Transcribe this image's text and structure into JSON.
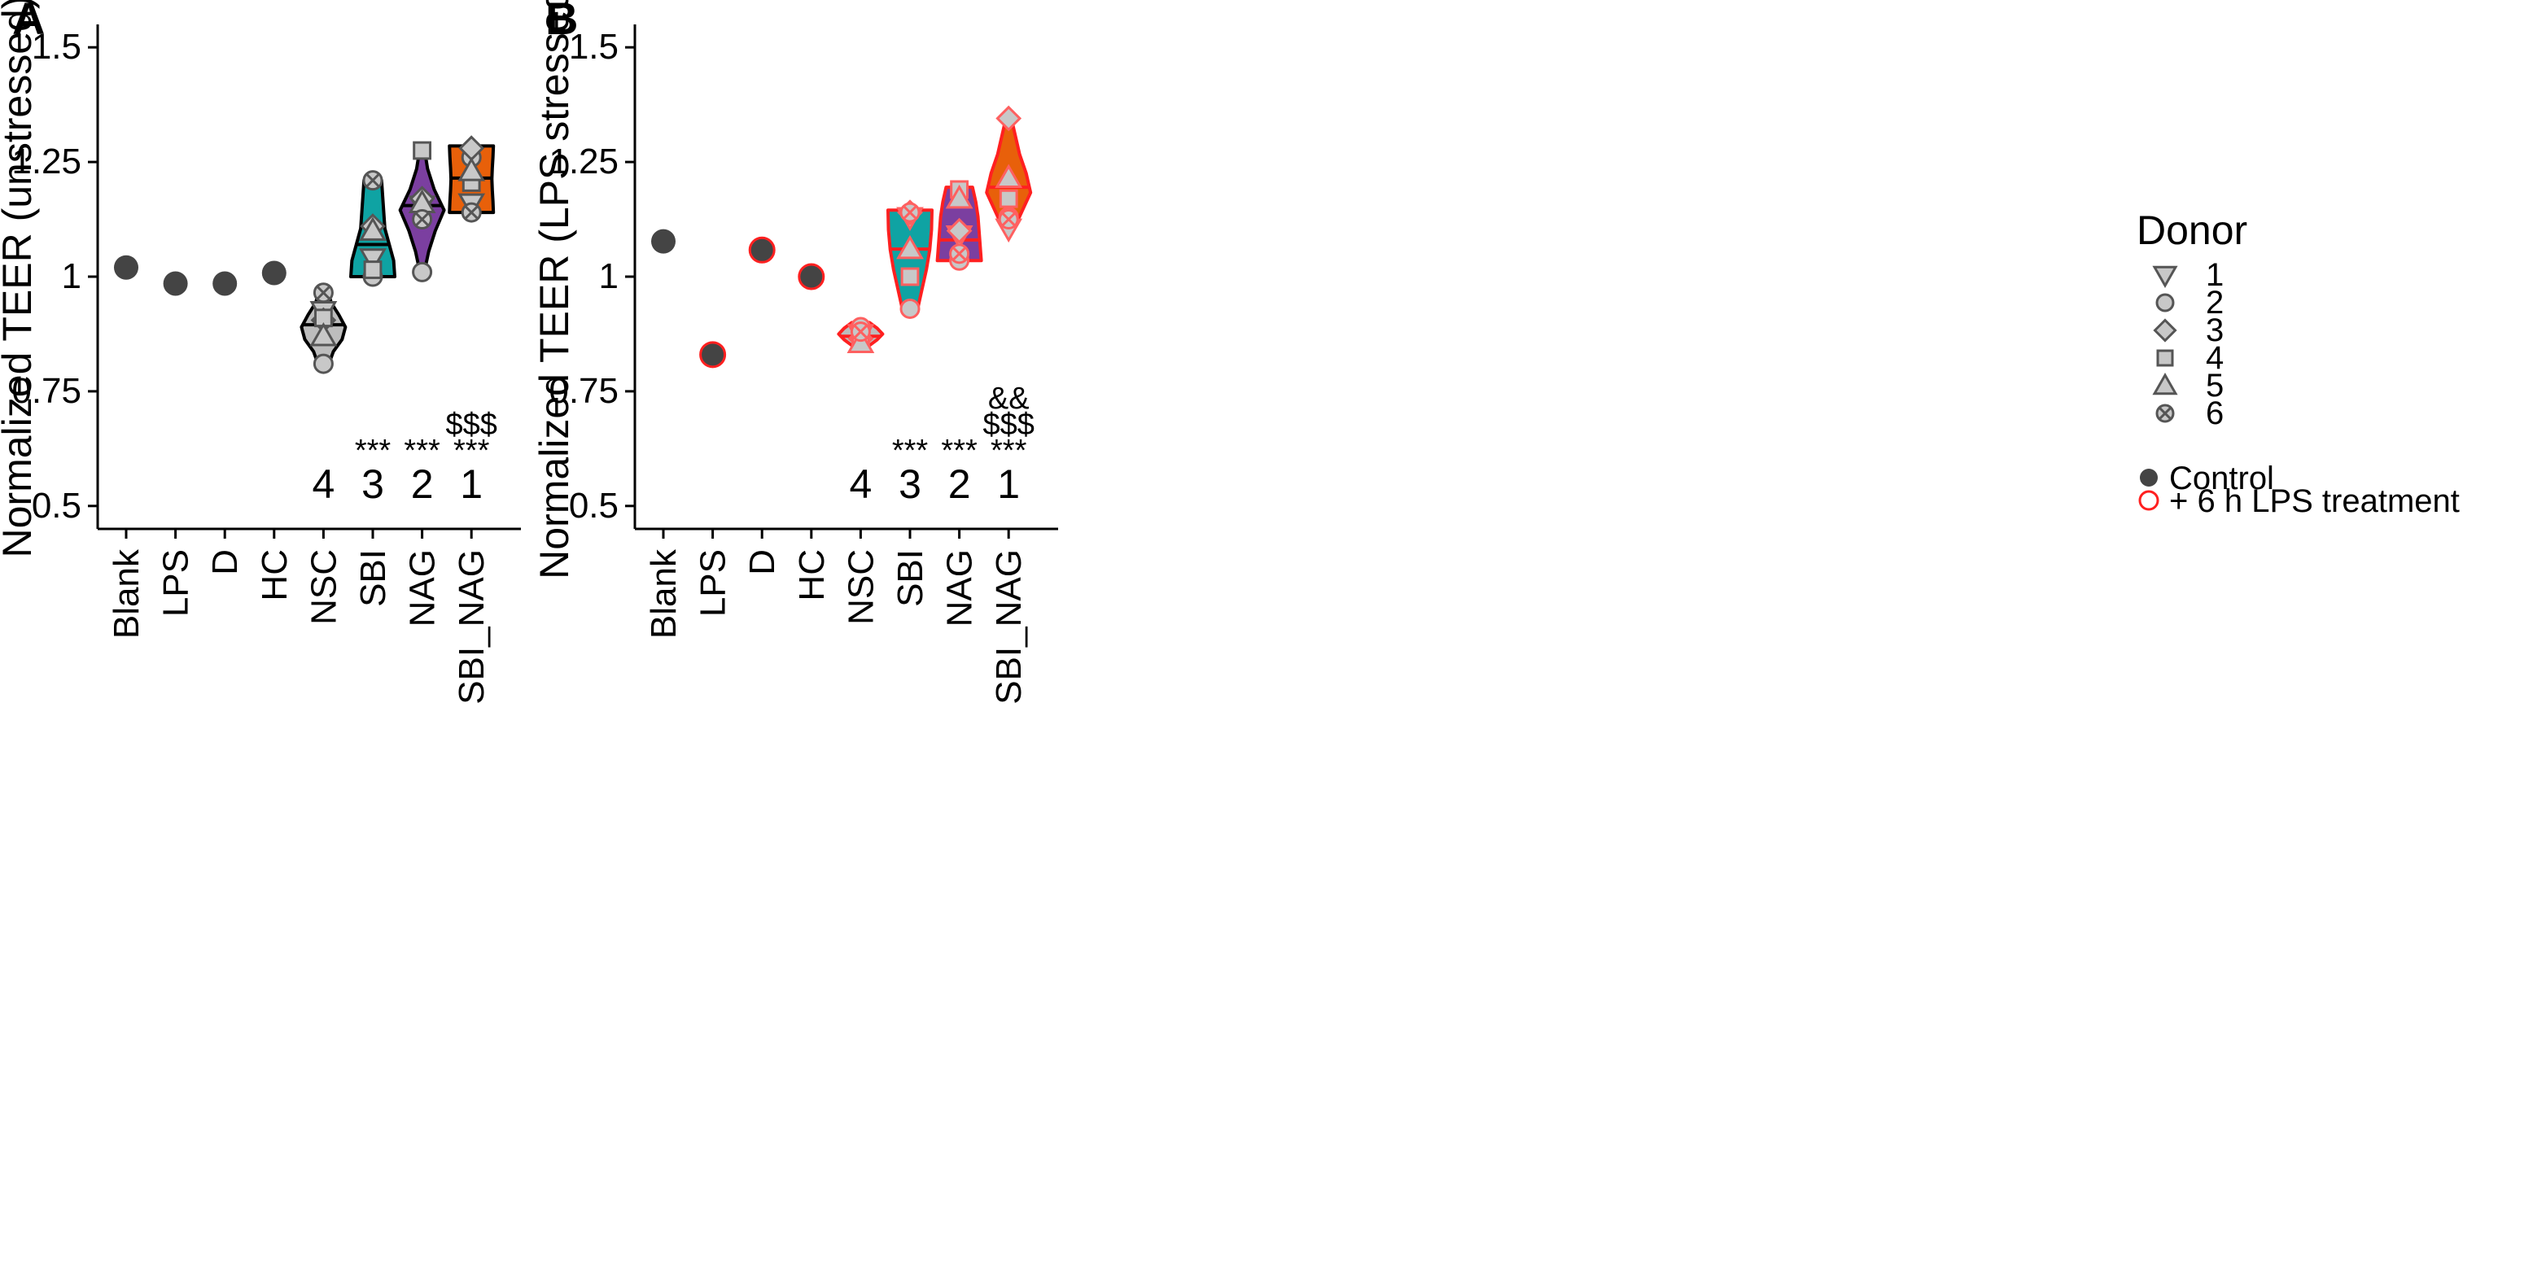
{
  "chart_data": [
    {
      "panel_label": "A",
      "type": "violin",
      "ylabel": "Normalized TEER (unstressed)",
      "ylim": [
        0.45,
        1.55
      ],
      "yticks": [
        0.5,
        0.75,
        1,
        1.25,
        1.5
      ],
      "ytick_labels": [
        "0.5",
        "0.75",
        "1",
        "1.25",
        "1.5"
      ],
      "categories": [
        "Blank",
        "LPS",
        "D",
        "HC",
        "NSC",
        "SBI",
        "NAG",
        "SBI_NAG"
      ],
      "fill_colors": [
        "#444444",
        "#444444",
        "#444444",
        "#444444",
        "#BDBDBD",
        "#0FA3A3",
        "#7B3FA0",
        "#E8600A"
      ],
      "outline_color": "#000000",
      "single_values": [
        1.02,
        0.985,
        0.985,
        1.008,
        null,
        null,
        null,
        null
      ],
      "violins": [
        null,
        null,
        null,
        null,
        {
          "min": 0.81,
          "max": 0.97,
          "median": 0.895,
          "widths": [
            0.25,
            0.45,
            0.85,
            1.0,
            0.7,
            0.35,
            0.2
          ]
        },
        {
          "min": 1.0,
          "max": 1.21,
          "median": 1.07,
          "widths": [
            1.0,
            0.95,
            0.75,
            0.55,
            0.5,
            0.45,
            0.4
          ]
        },
        {
          "min": 1.01,
          "max": 1.28,
          "median": 1.155,
          "widths": [
            0.1,
            0.3,
            0.6,
            1.0,
            0.55,
            0.25,
            0.1
          ]
        },
        {
          "min": 1.14,
          "max": 1.285,
          "median": 1.215,
          "widths": [
            1.0,
            0.98,
            0.95,
            0.93,
            0.95,
            0.98,
            1.0
          ]
        }
      ],
      "donor_points": [
        null,
        null,
        null,
        null,
        [
          {
            "donor": "1",
            "value": 0.925
          },
          {
            "donor": "2",
            "value": 0.81
          },
          {
            "donor": "3",
            "value": 0.905
          },
          {
            "donor": "4",
            "value": 0.91
          },
          {
            "donor": "5",
            "value": 0.87
          },
          {
            "donor": "6",
            "value": 0.965
          }
        ],
        [
          {
            "donor": "1",
            "value": 1.04
          },
          {
            "donor": "2",
            "value": 1.0
          },
          {
            "donor": "3",
            "value": 1.11
          },
          {
            "donor": "4",
            "value": 1.015
          },
          {
            "donor": "5",
            "value": 1.1
          },
          {
            "donor": "6",
            "value": 1.21
          }
        ],
        [
          {
            "donor": "1",
            "value": 1.155
          },
          {
            "donor": "2",
            "value": 1.01
          },
          {
            "donor": "3",
            "value": 1.17
          },
          {
            "donor": "4",
            "value": 1.275
          },
          {
            "donor": "5",
            "value": 1.16
          },
          {
            "donor": "6",
            "value": 1.125
          }
        ],
        [
          {
            "donor": "1",
            "value": 1.16
          },
          {
            "donor": "2",
            "value": 1.26
          },
          {
            "donor": "3",
            "value": 1.28
          },
          {
            "donor": "4",
            "value": 1.205
          },
          {
            "donor": "5",
            "value": 1.23
          },
          {
            "donor": "6",
            "value": 1.14
          }
        ]
      ],
      "annotations": [
        {
          "category": "NSC",
          "rank": "4",
          "sig": []
        },
        {
          "category": "SBI",
          "rank": "3",
          "sig": [
            "***"
          ]
        },
        {
          "category": "NAG",
          "rank": "2",
          "sig": [
            "***"
          ]
        },
        {
          "category": "SBI_NAG",
          "rank": "1",
          "sig": [
            "***",
            "$$$"
          ]
        }
      ]
    },
    {
      "panel_label": "B",
      "type": "violin",
      "ylabel": "Normalized TEER (LPS stressed)",
      "ylim": [
        0.45,
        1.55
      ],
      "yticks": [
        0.5,
        0.75,
        1,
        1.25,
        1.5
      ],
      "ytick_labels": [
        "0.5",
        "0.75",
        "1",
        "1.25",
        "1.5"
      ],
      "categories": [
        "Blank",
        "LPS",
        "D",
        "HC",
        "NSC",
        "SBI",
        "NAG",
        "SBI_NAG"
      ],
      "fill_colors": [
        "#444444",
        "#444444",
        "#444444",
        "#444444",
        "#BDBDBD",
        "#0FA3A3",
        "#7B3FA0",
        "#E8600A"
      ],
      "outline_color": "#FF2020",
      "single_values": [
        1.077,
        0.83,
        1.058,
        1.0,
        null,
        null,
        null,
        null
      ],
      "single_outlined": [
        false,
        true,
        true,
        true,
        false,
        false,
        false,
        false
      ],
      "violins": [
        null,
        null,
        null,
        null,
        {
          "min": 0.85,
          "max": 0.9,
          "median": 0.87,
          "widths": [
            0.4,
            0.75,
            1.0,
            0.75,
            0.4
          ]
        },
        {
          "min": 0.93,
          "max": 1.145,
          "median": 1.06,
          "widths": [
            0.35,
            0.55,
            0.75,
            0.9,
            0.98,
            1.0
          ]
        },
        {
          "min": 1.035,
          "max": 1.195,
          "median": 1.08,
          "widths": [
            1.0,
            0.95,
            0.9,
            0.85,
            0.75,
            0.6
          ]
        },
        {
          "min": 1.1,
          "max": 1.35,
          "median": 1.195,
          "widths": [
            0.2,
            0.6,
            1.0,
            0.8,
            0.5,
            0.3,
            0.1
          ]
        }
      ],
      "donor_points": [
        null,
        null,
        null,
        null,
        [
          {
            "donor": "1",
            "value": 0.875
          },
          {
            "donor": "2",
            "value": 0.89
          },
          {
            "donor": "3",
            "value": 0.865
          },
          {
            "donor": "4",
            "value": 0.87
          },
          {
            "donor": "5",
            "value": 0.855
          },
          {
            "donor": "6",
            "value": 0.88
          }
        ],
        [
          {
            "donor": "1",
            "value": 1.13
          },
          {
            "donor": "2",
            "value": 0.93
          },
          {
            "donor": "3",
            "value": 1.14
          },
          {
            "donor": "4",
            "value": 1.0
          },
          {
            "donor": "5",
            "value": 1.06
          },
          {
            "donor": "6",
            "value": 1.14
          }
        ],
        [
          {
            "donor": "1",
            "value": 1.09
          },
          {
            "donor": "2",
            "value": 1.035
          },
          {
            "donor": "3",
            "value": 1.1
          },
          {
            "donor": "4",
            "value": 1.19
          },
          {
            "donor": "5",
            "value": 1.17
          },
          {
            "donor": "6",
            "value": 1.05
          }
        ],
        [
          {
            "donor": "1",
            "value": 1.105
          },
          {
            "donor": "2",
            "value": 1.13
          },
          {
            "donor": "3",
            "value": 1.345
          },
          {
            "donor": "4",
            "value": 1.17
          },
          {
            "donor": "5",
            "value": 1.215
          },
          {
            "donor": "6",
            "value": 1.125
          }
        ]
      ],
      "annotations": [
        {
          "category": "NSC",
          "rank": "4",
          "sig": []
        },
        {
          "category": "SBI",
          "rank": "3",
          "sig": [
            "***"
          ]
        },
        {
          "category": "NAG",
          "rank": "2",
          "sig": [
            "***"
          ]
        },
        {
          "category": "SBI_NAG",
          "rank": "1",
          "sig": [
            "***",
            "$$$",
            "&&"
          ]
        }
      ]
    }
  ],
  "legend": {
    "title": "Donor",
    "donors": [
      {
        "label": "1",
        "shape": "triangle-down"
      },
      {
        "label": "2",
        "shape": "circle"
      },
      {
        "label": "3",
        "shape": "diamond"
      },
      {
        "label": "4",
        "shape": "square"
      },
      {
        "label": "5",
        "shape": "triangle-up"
      },
      {
        "label": "6",
        "shape": "circle-x"
      }
    ],
    "treatments": [
      {
        "label": "Control",
        "style": "filled-dark-circle"
      },
      {
        "label": "+ 6 h LPS treatment",
        "style": "red-open-circle"
      }
    ]
  },
  "colors": {
    "control_point": "#444444",
    "lps_red": "#FF2020",
    "donor_marker_fill": "#C8C8C8",
    "donor_marker_stroke": "#555555"
  }
}
